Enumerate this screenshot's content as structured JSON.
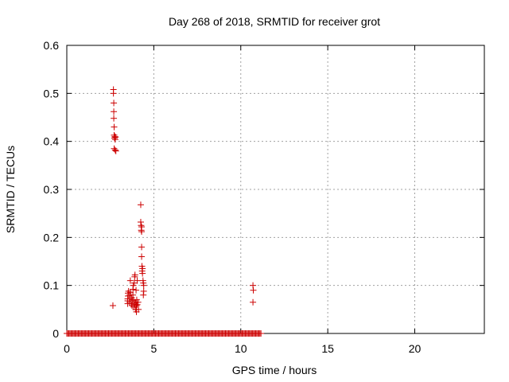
{
  "chart_data": {
    "type": "scatter",
    "title": "Day 268 of 2018, SRMTID for receiver grot",
    "xlabel": "GPS time / hours",
    "ylabel": "SRMTID / TECUs",
    "xlim": [
      0,
      24
    ],
    "ylim": [
      0,
      0.6
    ],
    "xticks": [
      0,
      5,
      10,
      15,
      20
    ],
    "xtick_labels": [
      "0",
      "5",
      "10",
      "15",
      "20"
    ],
    "yticks": [
      0,
      0.1,
      0.2,
      0.3,
      0.4,
      0.5,
      0.6
    ],
    "ytick_labels": [
      "0",
      "0.1",
      "0.2",
      "0.3",
      "0.4",
      "0.5",
      "0.6"
    ],
    "grid": true,
    "marker": "+",
    "series": [
      {
        "name": "SRMTID",
        "color": "#cc0000",
        "zero_band": {
          "x_start": 0.0,
          "x_end": 11.2,
          "y": 0
        },
        "points": [
          [
            2.68,
            0.508
          ],
          [
            2.68,
            0.5
          ],
          [
            2.7,
            0.48
          ],
          [
            2.7,
            0.462
          ],
          [
            2.7,
            0.448
          ],
          [
            2.72,
            0.43
          ],
          [
            2.72,
            0.413
          ],
          [
            2.74,
            0.407
          ],
          [
            2.76,
            0.41
          ],
          [
            2.78,
            0.404
          ],
          [
            2.8,
            0.409
          ],
          [
            2.72,
            0.385
          ],
          [
            2.78,
            0.382
          ],
          [
            2.82,
            0.38
          ],
          [
            2.65,
            0.058
          ],
          [
            3.5,
            0.062
          ],
          [
            3.5,
            0.068
          ],
          [
            3.5,
            0.072
          ],
          [
            3.52,
            0.078
          ],
          [
            3.52,
            0.084
          ],
          [
            3.55,
            0.088
          ],
          [
            3.6,
            0.065
          ],
          [
            3.62,
            0.072
          ],
          [
            3.62,
            0.08
          ],
          [
            3.65,
            0.085
          ],
          [
            3.65,
            0.11
          ],
          [
            3.7,
            0.062
          ],
          [
            3.72,
            0.075
          ],
          [
            3.75,
            0.058
          ],
          [
            3.78,
            0.07
          ],
          [
            3.8,
            0.08
          ],
          [
            3.8,
            0.092
          ],
          [
            3.82,
            0.1
          ],
          [
            3.85,
            0.055
          ],
          [
            3.85,
            0.068
          ],
          [
            3.9,
            0.06
          ],
          [
            3.9,
            0.118
          ],
          [
            3.92,
            0.122
          ],
          [
            3.95,
            0.05
          ],
          [
            3.95,
            0.065
          ],
          [
            4.0,
            0.045
          ],
          [
            4.0,
            0.058
          ],
          [
            4.02,
            0.07
          ],
          [
            4.05,
            0.06
          ],
          [
            4.05,
            0.11
          ],
          [
            4.1,
            0.065
          ],
          [
            4.12,
            0.05
          ],
          [
            3.98,
            0.09
          ],
          [
            3.88,
            0.105
          ],
          [
            4.25,
            0.268
          ],
          [
            4.25,
            0.232
          ],
          [
            4.27,
            0.225
          ],
          [
            4.3,
            0.222
          ],
          [
            4.28,
            0.215
          ],
          [
            4.3,
            0.212
          ],
          [
            4.3,
            0.18
          ],
          [
            4.3,
            0.16
          ],
          [
            4.32,
            0.14
          ],
          [
            4.35,
            0.135
          ],
          [
            4.33,
            0.13
          ],
          [
            4.35,
            0.125
          ],
          [
            4.38,
            0.11
          ],
          [
            4.4,
            0.105
          ],
          [
            4.42,
            0.1
          ],
          [
            4.42,
            0.088
          ],
          [
            4.4,
            0.08
          ],
          [
            10.7,
            0.1
          ],
          [
            10.72,
            0.09
          ],
          [
            10.7,
            0.065
          ]
        ]
      }
    ]
  }
}
